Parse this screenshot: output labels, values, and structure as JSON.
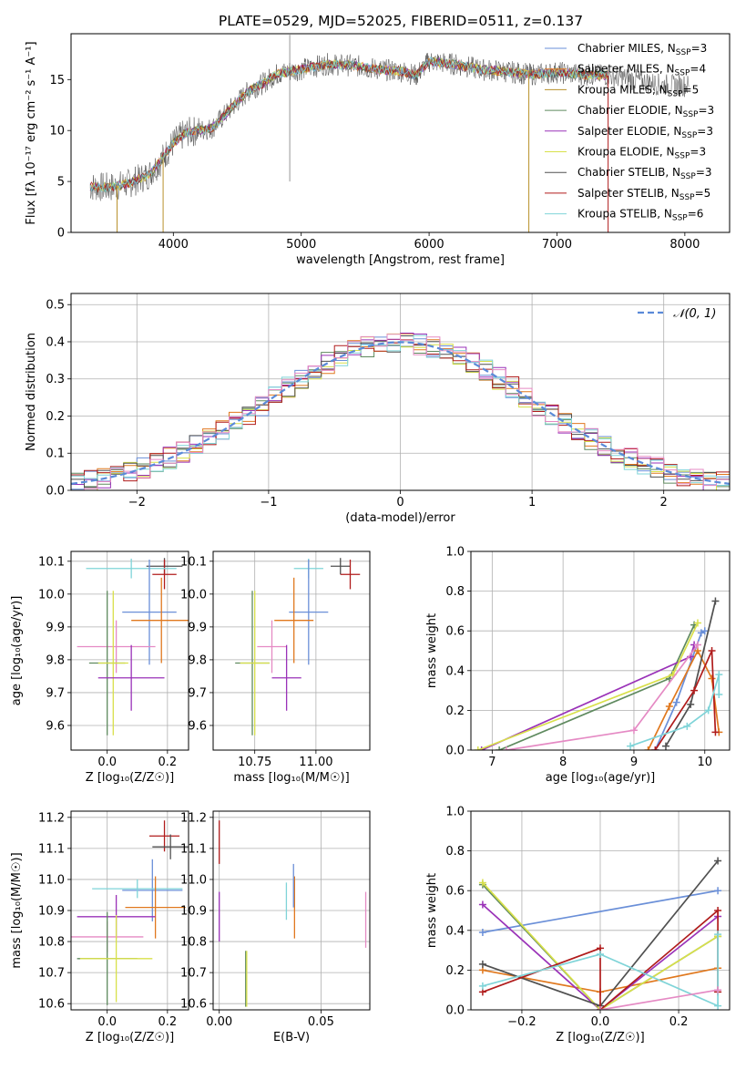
{
  "figure": {
    "title": "PLATE=0529, MJD=52025, FIBERID=0511, z=0.137"
  },
  "colors": {
    "Chabrier MILES": "#6a8fd8",
    "Salpeter MILES": "#e0781e",
    "Kroupa MILES": "#b8902a",
    "Chabrier ELODIE": "#5f8a5f",
    "Salpeter ELODIE": "#9a32b8",
    "Kroupa ELODIE": "#d8e04a",
    "Chabrier STELIB": "#505050",
    "Salpeter STELIB": "#b01c1c",
    "Kroupa STELIB": "#7fd4d8",
    "pink": "#e58ac4",
    "lime": "#b8e05a",
    "gaussian": "#5a8ad8"
  },
  "chart_data": [
    {
      "id": "spectrum",
      "type": "line",
      "title": "PLATE=0529, MJD=52025, FIBERID=0511, z=0.137",
      "xlabel": "wavelength [Angstrom, rest frame]",
      "ylabel": "Flux [fλ 10⁻¹⁷ erg cm⁻² s⁻¹ A⁻¹]",
      "xlim": [
        3200,
        8350
      ],
      "ylim": [
        0,
        19.5
      ],
      "xticks": [
        4000,
        5000,
        6000,
        7000,
        8000
      ],
      "yticks": [
        0,
        5,
        10,
        15
      ],
      "legend_position": "top-right",
      "legend": [
        "Chabrier MILES, N_SSP=3",
        "Salpeter MILES, N_SSP=4",
        "Kroupa MILES, N_SSP=5",
        "Chabrier ELODIE, N_SSP=3",
        "Salpeter ELODIE, N_SSP=3",
        "Kroupa ELODIE, N_SSP=3",
        "Chabrier STELIB, N_SSP=3",
        "Salpeter STELIB, N_SSP=5",
        "Kroupa STELIB, N_SSP=6"
      ],
      "legend_main": [
        "Chabrier MILES, N",
        "Salpeter MILES, N",
        "Kroupa MILES, N",
        "Chabrier ELODIE, N",
        "Salpeter ELODIE, N",
        "Kroupa ELODIE, N",
        "Chabrier STELIB, N",
        "Salpeter STELIB, N",
        "Kroupa STELIB, N"
      ],
      "legend_sub": "SSP",
      "legend_val": [
        "=3",
        "=4",
        "=5",
        "=3",
        "=3",
        "=3",
        "=3",
        "=5",
        "=6"
      ],
      "legend_colors": [
        "#6a8fd8",
        "#e0781e",
        "#b8902a",
        "#5f8a5f",
        "#9a32b8",
        "#d8e04a",
        "#505050",
        "#b01c1c",
        "#7fd4d8"
      ],
      "continuum": {
        "x": [
          3350,
          3500,
          3650,
          3800,
          3900,
          4000,
          4100,
          4200,
          4300,
          4400,
          4500,
          4600,
          4700,
          4800,
          4900,
          5000,
          5200,
          5400,
          5600,
          5800,
          5900,
          6000,
          6200,
          6400,
          6600,
          6800,
          7000,
          7200,
          7400,
          7600,
          7800,
          8000
        ],
        "y": [
          4.5,
          4.4,
          4.8,
          5.6,
          7.0,
          8.8,
          9.8,
          10.0,
          10.2,
          11.5,
          12.8,
          14.0,
          14.6,
          15.5,
          15.8,
          16.0,
          16.5,
          16.4,
          16.0,
          15.8,
          15.4,
          16.8,
          16.5,
          16.0,
          15.8,
          15.5,
          15.7,
          15.5,
          15.4,
          15.0,
          14.5,
          14.4
        ]
      },
      "model_end": 7400,
      "data_end": 8030,
      "noise_seed": 7
    },
    {
      "id": "residuals",
      "type": "line",
      "xlabel": "(data-model)/error",
      "ylabel": "Normed distribution",
      "xlim": [
        -2.5,
        2.5
      ],
      "ylim": [
        0,
        0.53
      ],
      "xticks": [
        -2,
        -1,
        0,
        1,
        2
      ],
      "yticks": [
        0.0,
        0.1,
        0.2,
        0.3,
        0.4,
        0.5
      ],
      "legend_position": "top-right",
      "legend": [
        "𝒩(0, 1)"
      ],
      "bin_width": 0.1,
      "hist_seed": 3,
      "series_colors": [
        "#6a8fd8",
        "#e0781e",
        "#5f8a5f",
        "#9a32b8",
        "#d8e04a",
        "#505050",
        "#b01c1c",
        "#7fd4d8",
        "#e58ac4"
      ]
    },
    {
      "id": "age-vs-Z",
      "type": "scatter",
      "xlabel": "Z [log₁₀(Z/Z☉)]",
      "ylabel": "age  [log₁₀(age/yr)]",
      "xlim": [
        -0.12,
        0.27
      ],
      "ylim": [
        9.525,
        10.13
      ],
      "xticks": [
        0.0,
        0.2
      ],
      "yticks": [
        9.6,
        9.7,
        9.8,
        9.9,
        10.0,
        10.1
      ],
      "points": [
        {
          "x": 0.19,
          "y": 10.085,
          "xerr": 0.06,
          "yerr": 0.025,
          "color": "#505050"
        },
        {
          "x": 0.19,
          "y": 10.06,
          "xerr": 0.04,
          "yerr": 0.045,
          "color": "#b01c1c"
        },
        {
          "x": 0.08,
          "y": 10.078,
          "xerr": 0.15,
          "yerr": 0.03,
          "color": "#7fd4d8"
        },
        {
          "x": 0.14,
          "y": 9.945,
          "xerr": 0.09,
          "yerr": 0.16,
          "color": "#6a8fd8"
        },
        {
          "x": 0.18,
          "y": 9.92,
          "xerr": 0.1,
          "yerr": 0.13,
          "color": "#e0781e"
        },
        {
          "x": 0.03,
          "y": 9.84,
          "xerr": 0.13,
          "yerr": 0.08,
          "color": "#e58ac4"
        },
        {
          "x": 0.0,
          "y": 9.79,
          "xerr": 0.06,
          "yerr": 0.22,
          "color": "#5f8a5f"
        },
        {
          "x": 0.02,
          "y": 9.79,
          "xerr": 0.05,
          "yerr": 0.22,
          "color": "#d8e04a"
        },
        {
          "x": 0.08,
          "y": 9.745,
          "xerr": 0.11,
          "yerr": 0.1,
          "color": "#9a32b8"
        }
      ]
    },
    {
      "id": "age-vs-mass",
      "type": "scatter",
      "xlabel": "mass [log₁₀(M/M☉)]",
      "xlim": [
        10.58,
        11.22
      ],
      "ylim": [
        9.525,
        10.13
      ],
      "xticks": [
        10.75,
        11.0
      ],
      "yticks": [
        9.6,
        9.7,
        9.8,
        9.9,
        10.0,
        10.1
      ],
      "points": [
        {
          "x": 11.1,
          "y": 10.085,
          "xerr": 0.04,
          "yerr": 0.025,
          "color": "#505050"
        },
        {
          "x": 11.14,
          "y": 10.06,
          "xerr": 0.04,
          "yerr": 0.045,
          "color": "#b01c1c"
        },
        {
          "x": 10.97,
          "y": 10.078,
          "xerr": 0.06,
          "yerr": 0.03,
          "color": "#7fd4d8"
        },
        {
          "x": 10.97,
          "y": 9.945,
          "xerr": 0.08,
          "yerr": 0.16,
          "color": "#6a8fd8"
        },
        {
          "x": 10.91,
          "y": 9.92,
          "xerr": 0.08,
          "yerr": 0.13,
          "color": "#e0781e"
        },
        {
          "x": 10.82,
          "y": 9.84,
          "xerr": 0.06,
          "yerr": 0.08,
          "color": "#e58ac4"
        },
        {
          "x": 10.74,
          "y": 9.79,
          "xerr": 0.07,
          "yerr": 0.22,
          "color": "#5f8a5f"
        },
        {
          "x": 10.75,
          "y": 9.79,
          "xerr": 0.06,
          "yerr": 0.22,
          "color": "#d8e04a"
        },
        {
          "x": 10.88,
          "y": 9.745,
          "xerr": 0.06,
          "yerr": 0.1,
          "color": "#9a32b8"
        }
      ]
    },
    {
      "id": "weight-vs-age",
      "type": "line",
      "xlabel": "age  [log₁₀(age/yr)]",
      "ylabel": "mass weight",
      "xlim": [
        6.7,
        10.35
      ],
      "ylim": [
        0,
        1.0
      ],
      "xticks": [
        7,
        8,
        9,
        10
      ],
      "yticks": [
        0.0,
        0.2,
        0.4,
        0.6,
        0.8,
        1.0
      ],
      "series": [
        {
          "color": "#6a8fd8",
          "x": [
            9.3,
            9.6,
            9.95,
            10.0
          ],
          "y": [
            0.0,
            0.24,
            0.59,
            0.6
          ]
        },
        {
          "color": "#e0781e",
          "x": [
            9.2,
            9.5,
            9.9,
            10.1,
            10.2
          ],
          "y": [
            0.0,
            0.22,
            0.5,
            0.36,
            0.09
          ]
        },
        {
          "color": "#5f8a5f",
          "x": [
            7.1,
            9.5,
            9.85
          ],
          "y": [
            0.0,
            0.36,
            0.63
          ]
        },
        {
          "color": "#9a32b8",
          "x": [
            6.85,
            9.8,
            9.85
          ],
          "y": [
            0.0,
            0.47,
            0.53
          ]
        },
        {
          "color": "#d8e04a",
          "x": [
            6.8,
            9.55,
            9.9
          ],
          "y": [
            0.0,
            0.38,
            0.64
          ]
        },
        {
          "color": "#505050",
          "x": [
            9.45,
            9.8,
            10.15
          ],
          "y": [
            0.02,
            0.23,
            0.75
          ]
        },
        {
          "color": "#b01c1c",
          "x": [
            9.3,
            9.85,
            10.1,
            10.15
          ],
          "y": [
            0.0,
            0.3,
            0.5,
            0.09
          ]
        },
        {
          "color": "#7fd4d8",
          "x": [
            8.95,
            9.75,
            10.05,
            10.2,
            10.2
          ],
          "y": [
            0.02,
            0.12,
            0.2,
            0.38,
            0.28
          ]
        },
        {
          "color": "#e58ac4",
          "x": [
            7.2,
            9.0,
            9.9
          ],
          "y": [
            0.0,
            0.1,
            0.53
          ]
        }
      ]
    },
    {
      "id": "mass-vs-Z",
      "type": "scatter",
      "xlabel": "Z [log₁₀(Z/Z☉)]",
      "ylabel": "mass [log₁₀(M/M☉)]",
      "xlim": [
        -0.12,
        0.27
      ],
      "ylim": [
        10.58,
        11.22
      ],
      "xticks": [
        0.0,
        0.2
      ],
      "yticks": [
        10.6,
        10.7,
        10.8,
        10.9,
        11.0,
        11.1,
        11.2
      ],
      "points": [
        {
          "x": 0.19,
          "y": 11.14,
          "xerr": 0.05,
          "yerr": 0.05,
          "color": "#b01c1c"
        },
        {
          "x": 0.21,
          "y": 11.105,
          "xerr": 0.06,
          "yerr": 0.04,
          "color": "#505050"
        },
        {
          "x": 0.15,
          "y": 10.965,
          "xerr": 0.1,
          "yerr": 0.1,
          "color": "#6a8fd8"
        },
        {
          "x": 0.1,
          "y": 10.97,
          "xerr": 0.15,
          "yerr": 0.03,
          "color": "#7fd4d8"
        },
        {
          "x": 0.16,
          "y": 10.91,
          "xerr": 0.1,
          "yerr": 0.1,
          "color": "#e0781e"
        },
        {
          "x": 0.03,
          "y": 10.88,
          "xerr": 0.13,
          "yerr": 0.07,
          "color": "#9a32b8"
        },
        {
          "x": 0.0,
          "y": 10.815,
          "xerr": 0.12,
          "yerr": 0.05,
          "color": "#e58ac4"
        },
        {
          "x": 0.0,
          "y": 10.745,
          "xerr": 0.1,
          "yerr": 0.15,
          "color": "#5f8a5f"
        },
        {
          "x": 0.03,
          "y": 10.745,
          "xerr": 0.12,
          "yerr": 0.14,
          "color": "#d8e04a"
        }
      ]
    },
    {
      "id": "mass-vs-EBV",
      "type": "scatter",
      "xlabel": "E(B-V)",
      "xlim": [
        -0.003,
        0.074
      ],
      "ylim": [
        10.58,
        11.22
      ],
      "xticks": [
        0.0,
        0.05
      ],
      "yticks": [
        10.6,
        10.7,
        10.8,
        10.9,
        11.0,
        11.1,
        11.2
      ],
      "points": [
        {
          "x": 0.0,
          "y": 11.12,
          "xerr": 0.0,
          "yerr": 0.07,
          "color": "#b01c1c"
        },
        {
          "x": 0.0,
          "y": 10.88,
          "xerr": 0.0,
          "yerr": 0.08,
          "color": "#9a32b8"
        },
        {
          "x": 0.013,
          "y": 10.68,
          "xerr": 0.0,
          "yerr": 0.09,
          "color": "#5f8a5f"
        },
        {
          "x": 0.0135,
          "y": 10.68,
          "xerr": 0.0,
          "yerr": 0.09,
          "color": "#d8e04a"
        },
        {
          "x": 0.033,
          "y": 10.93,
          "xerr": 0.0,
          "yerr": 0.06,
          "color": "#7fd4d8"
        },
        {
          "x": 0.037,
          "y": 10.91,
          "xerr": 0.0,
          "yerr": 0.1,
          "color": "#e0781e"
        },
        {
          "x": 0.0365,
          "y": 10.98,
          "xerr": 0.0,
          "yerr": 0.07,
          "color": "#6a8fd8"
        },
        {
          "x": 0.072,
          "y": 10.87,
          "xerr": 0.0,
          "yerr": 0.09,
          "color": "#e58ac4"
        }
      ]
    },
    {
      "id": "weight-vs-Z",
      "type": "line",
      "xlabel": "Z [log₁₀(Z/Z☉)]",
      "ylabel": "mass weight",
      "xlim": [
        -0.33,
        0.33
      ],
      "ylim": [
        0,
        1.0
      ],
      "xticks": [
        -0.2,
        0.0,
        0.2
      ],
      "yticks": [
        0.0,
        0.2,
        0.4,
        0.6,
        0.8,
        1.0
      ],
      "series": [
        {
          "color": "#6a8fd8",
          "x": [
            -0.3,
            0.3
          ],
          "y": [
            0.39,
            0.6
          ]
        },
        {
          "color": "#e0781e",
          "x": [
            -0.3,
            0.0,
            0.3
          ],
          "y": [
            0.2,
            0.09,
            0.21
          ]
        },
        {
          "color": "#5f8a5f",
          "x": [
            -0.3,
            0.0,
            0.3
          ],
          "y": [
            0.63,
            0.0,
            0.37
          ]
        },
        {
          "color": "#9a32b8",
          "x": [
            -0.3,
            0.0,
            0.3
          ],
          "y": [
            0.53,
            0.0,
            0.47
          ]
        },
        {
          "color": "#d8e04a",
          "x": [
            -0.3,
            0.0,
            0.3
          ],
          "y": [
            0.64,
            0.0,
            0.37
          ]
        },
        {
          "color": "#505050",
          "x": [
            -0.3,
            0.0,
            0.3
          ],
          "y": [
            0.23,
            0.02,
            0.75
          ]
        },
        {
          "color": "#b01c1c",
          "x": [
            -0.3,
            0.0,
            0.0,
            0.3,
            0.3
          ],
          "y": [
            0.09,
            0.31,
            0.0,
            0.5,
            0.09
          ]
        },
        {
          "color": "#7fd4d8",
          "x": [
            -0.3,
            0.0,
            0.3,
            0.3
          ],
          "y": [
            0.12,
            0.28,
            0.02,
            0.38
          ]
        },
        {
          "color": "#e58ac4",
          "x": [
            0.0,
            0.3
          ],
          "y": [
            0.0,
            0.1
          ]
        }
      ]
    }
  ]
}
